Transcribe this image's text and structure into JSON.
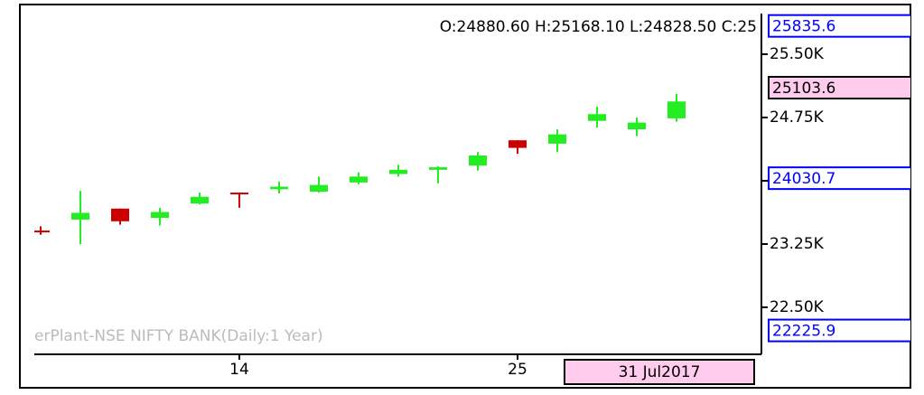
{
  "chart_data": {
    "type": "candlestick",
    "header": "O:24880.60  H:25168.10  L:24828.50  C:25",
    "watermark": "erPlant-NSE NIFTY BANK(Daily:1 Year)",
    "categories": [
      null,
      null,
      null,
      null,
      null,
      "14",
      null,
      null,
      null,
      null,
      null,
      null,
      "25",
      null,
      null,
      null,
      null
    ],
    "open": [
      23410,
      23540,
      23670,
      23560,
      23730,
      23860,
      23900,
      23870,
      23980,
      24080,
      24130,
      24180,
      24480,
      24440,
      24710,
      24610,
      24740
    ],
    "high": [
      23460,
      23880,
      23670,
      23680,
      23860,
      23860,
      23990,
      24050,
      24100,
      24190,
      24170,
      24340,
      24480,
      24610,
      24880,
      24750,
      25030
    ],
    "low": [
      23360,
      23250,
      23480,
      23470,
      23720,
      23680,
      23850,
      23860,
      23960,
      24050,
      23970,
      24120,
      24320,
      24340,
      24630,
      24530,
      24700
    ],
    "close": [
      23390,
      23620,
      23520,
      23630,
      23810,
      23850,
      23930,
      23950,
      24050,
      24130,
      24160,
      24300,
      24390,
      24550,
      24790,
      24690,
      24940
    ],
    "up_color": "#22ee22",
    "down_color": "#cc0000",
    "ylim": [
      21943,
      25982
    ],
    "yticks": [
      {
        "value": 22500,
        "label": "22.50K"
      },
      {
        "value": 23250,
        "label": "23.25K"
      },
      {
        "value": 24000,
        "label": "24.00K"
      },
      {
        "value": 24750,
        "label": "24.75K"
      },
      {
        "value": 25500,
        "label": "25.50K"
      }
    ],
    "price_markers": [
      {
        "value": 25835.6,
        "color": "#0000ff",
        "background": "#ffffff"
      },
      {
        "value": 25103.6,
        "color": "#000000",
        "background": "#ffccee"
      },
      {
        "value": 24030.7,
        "color": "#0000ff",
        "background": "#ffffff"
      },
      {
        "value": 22225.9,
        "color": "#0000ff",
        "background": "#ffffff"
      }
    ],
    "cursor_date": "31 Jul2017",
    "cursor_date_background": "#ffccee"
  }
}
